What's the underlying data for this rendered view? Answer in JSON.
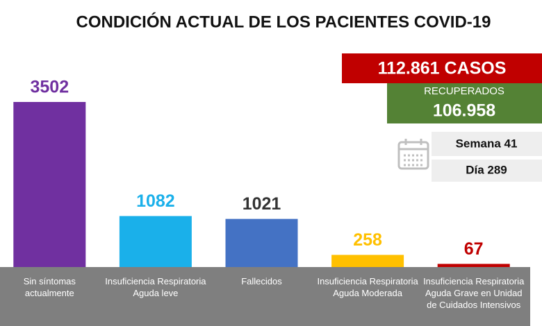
{
  "chart_data": {
    "type": "bar",
    "title": "CONDICIÓN ACTUAL DE LOS PACIENTES COVID-19",
    "categories": [
      "Sin síntomas actualmente",
      "Insuficiencia Respiratoria Aguda leve",
      "Fallecidos",
      "Insuficiencia Respiratoria Aguda Moderada",
      "Insuficiencia Respiratoria Aguda Grave en Unidad de Cuidados Intensivos"
    ],
    "values": [
      3502,
      1082,
      1021,
      258,
      67
    ],
    "colors": [
      "#7030a0",
      "#1ab0ea",
      "#4472c4",
      "#ffc000",
      "#c00000"
    ],
    "label_colors": [
      "#7030a0",
      "#1ab0ea",
      "#333333",
      "#ffc000",
      "#c00000"
    ],
    "annotations": {
      "cases": "112.861 CASOS",
      "recovered_label": "RECUPERADOS",
      "recovered": "106.958",
      "week": "Semana 41",
      "day": "Día 289"
    }
  }
}
